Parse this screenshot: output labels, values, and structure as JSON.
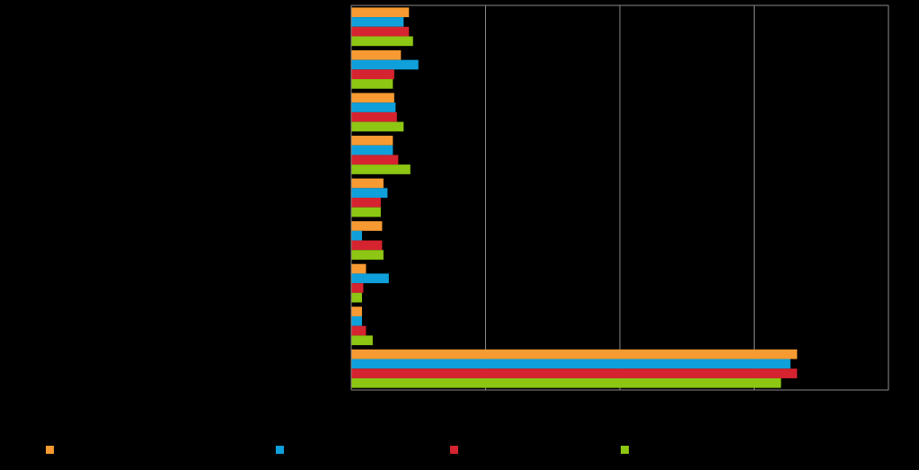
{
  "chart_data": {
    "type": "bar",
    "orientation": "horizontal",
    "title": "",
    "xlabel": "",
    "ylabel": "",
    "categories": [
      "",
      "",
      "",
      "",
      "",
      "",
      "",
      "",
      ""
    ],
    "series": [
      {
        "color": "#F79A32",
        "values": [
          4.3,
          3.7,
          3.2,
          3.1,
          2.4,
          2.3,
          1.1,
          0.8,
          33.2
        ]
      },
      {
        "color": "#0FA0DB",
        "values": [
          3.9,
          5.0,
          3.3,
          3.1,
          2.7,
          0.8,
          2.8,
          0.8,
          32.7
        ]
      },
      {
        "color": "#D5232F",
        "values": [
          4.3,
          3.2,
          3.4,
          3.5,
          2.2,
          2.3,
          0.9,
          1.1,
          33.2
        ]
      },
      {
        "color": "#8DC613",
        "values": [
          4.6,
          3.1,
          3.9,
          4.4,
          2.2,
          2.4,
          0.8,
          1.6,
          32.0
        ]
      }
    ],
    "xlim": [
      0,
      40
    ],
    "x_gridlines": [
      10,
      20,
      30
    ],
    "grid": true,
    "legend": "bottom"
  }
}
